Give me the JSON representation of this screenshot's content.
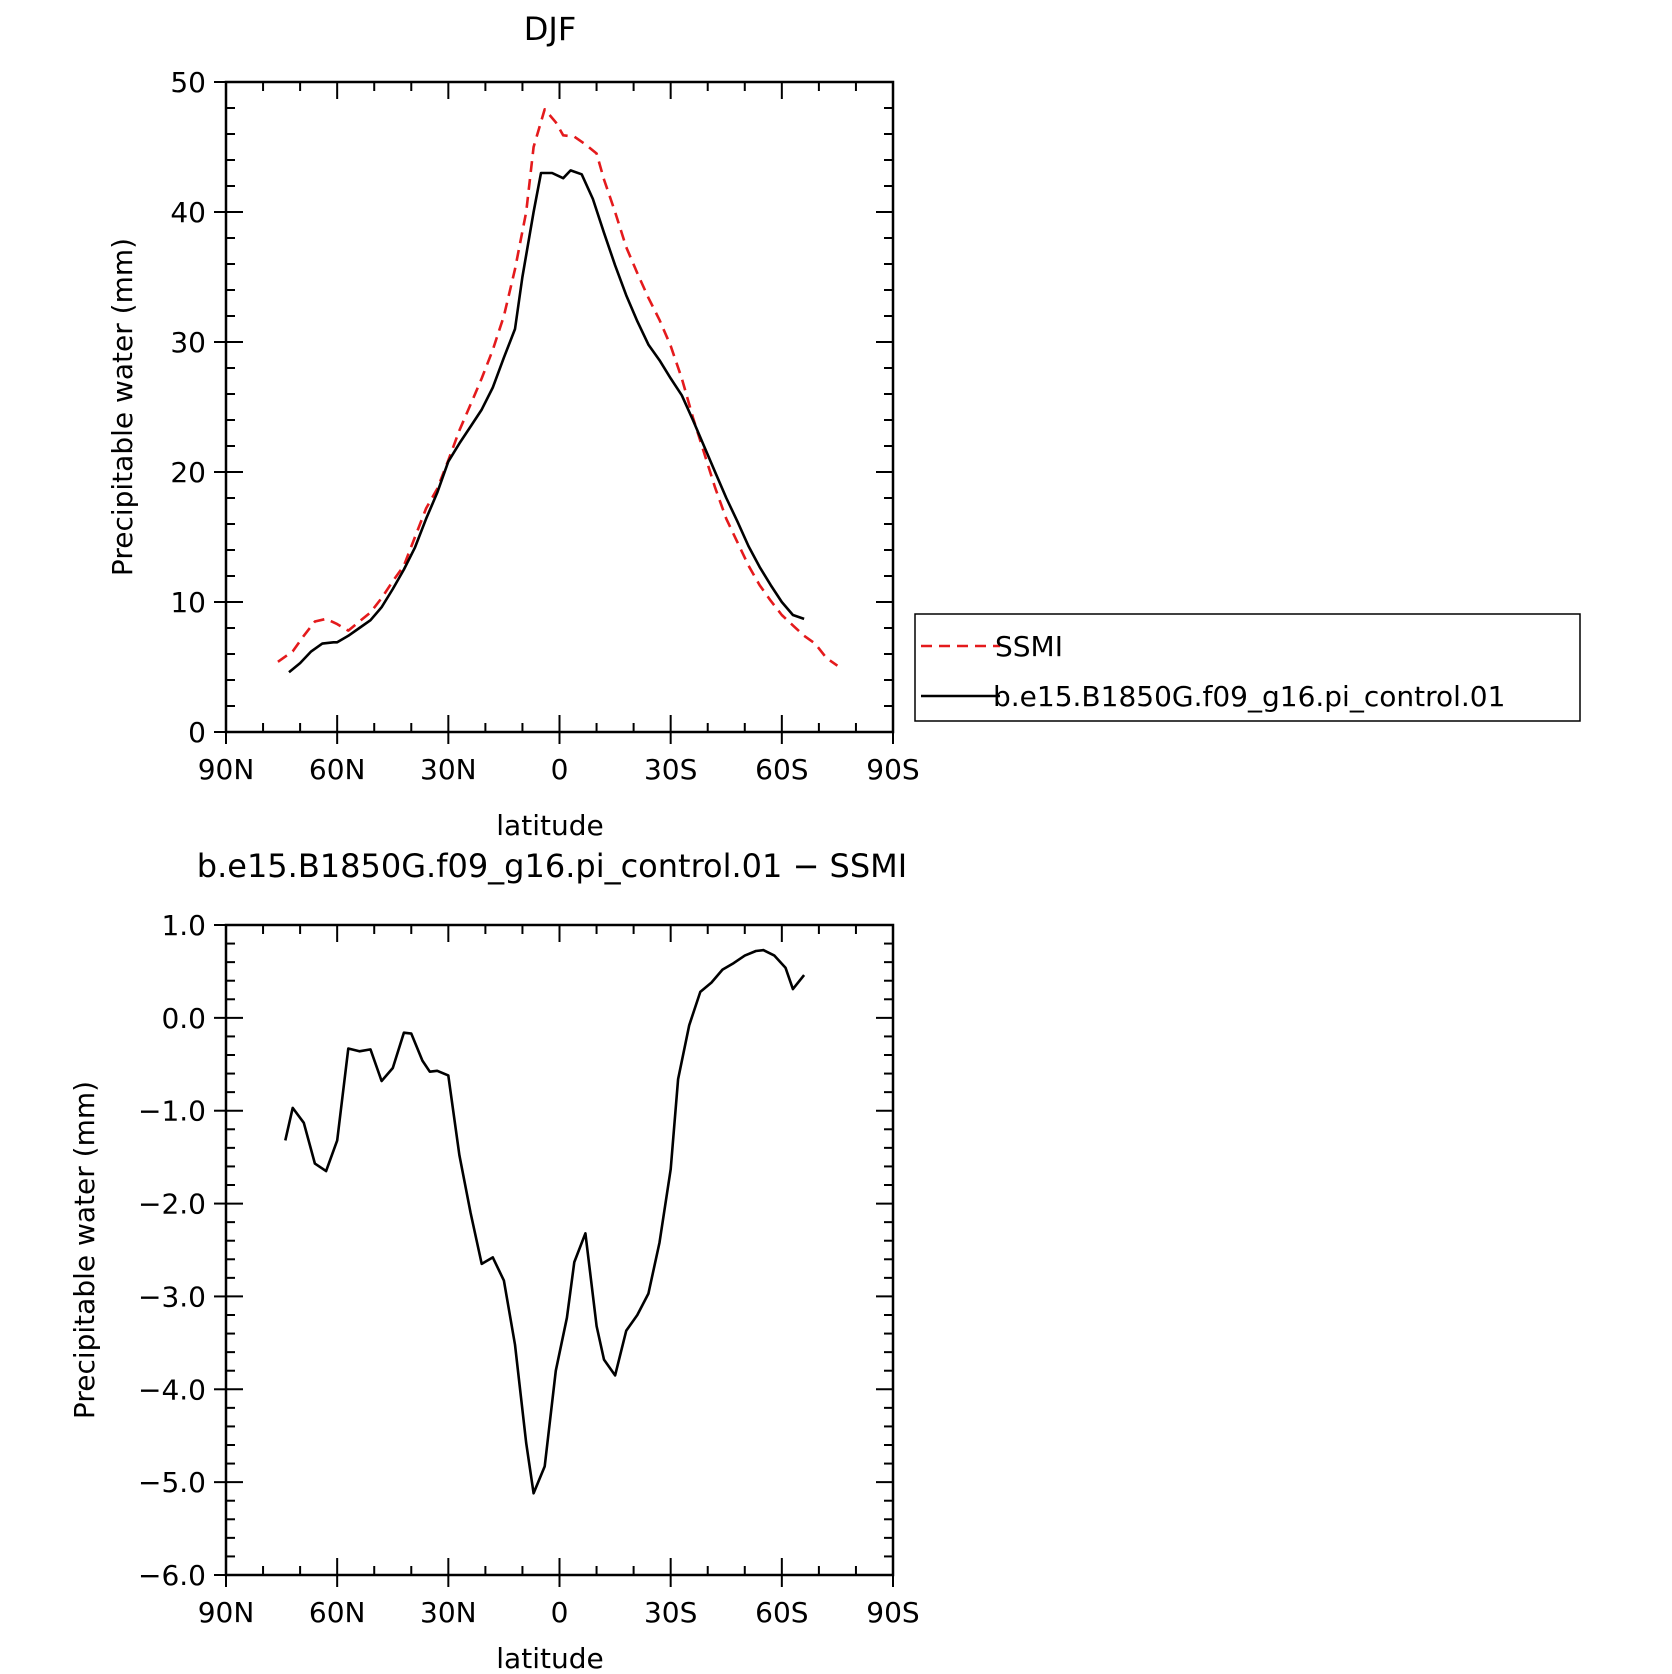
{
  "chart_data": [
    {
      "type": "line",
      "title": "DJF",
      "xlabel": "latitude",
      "ylabel": "Precipitable water (mm)",
      "xlim": [
        90,
        -90
      ],
      "ylim": [
        0,
        50
      ],
      "x_ticks": [
        {
          "value": 90,
          "label": "90N"
        },
        {
          "value": 60,
          "label": "60N"
        },
        {
          "value": 30,
          "label": "30N"
        },
        {
          "value": 0,
          "label": "0"
        },
        {
          "value": -30,
          "label": "30S"
        },
        {
          "value": -60,
          "label": "60S"
        },
        {
          "value": -90,
          "label": "90S"
        }
      ],
      "y_ticks": [
        {
          "value": 0,
          "label": "0"
        },
        {
          "value": 10,
          "label": "10"
        },
        {
          "value": 20,
          "label": "20"
        },
        {
          "value": 30,
          "label": "30"
        },
        {
          "value": 40,
          "label": "40"
        },
        {
          "value": 50,
          "label": "50"
        }
      ],
      "legend_position": "right",
      "series": [
        {
          "name": "SSMI",
          "color": "#e41a1c",
          "dash": "dashed",
          "points": [
            [
              76,
              5.4
            ],
            [
              72,
              6.2
            ],
            [
              69,
              7.4
            ],
            [
              66,
              8.5
            ],
            [
              63,
              8.7
            ],
            [
              60,
              8.3
            ],
            [
              57,
              7.8
            ],
            [
              54,
              8.5
            ],
            [
              51,
              9.2
            ],
            [
              48,
              10.3
            ],
            [
              45,
              11.6
            ],
            [
              42,
              12.8
            ],
            [
              39,
              15.0
            ],
            [
              36,
              17.2
            ],
            [
              33,
              18.7
            ],
            [
              30,
              20.9
            ],
            [
              27,
              23.2
            ],
            [
              24,
              25.2
            ],
            [
              21,
              27.2
            ],
            [
              18,
              29.4
            ],
            [
              15,
              32.0
            ],
            [
              12,
              35.6
            ],
            [
              9,
              40.0
            ],
            [
              7,
              45.0
            ],
            [
              4,
              47.9
            ],
            [
              1,
              46.9
            ],
            [
              -1,
              45.9
            ],
            [
              -4,
              45.8
            ],
            [
              -7,
              45.2
            ],
            [
              -10,
              44.5
            ],
            [
              -12,
              42.5
            ],
            [
              -15,
              40.0
            ],
            [
              -18,
              37.3
            ],
            [
              -21,
              35.3
            ],
            [
              -24,
              33.4
            ],
            [
              -27,
              31.7
            ],
            [
              -30,
              29.7
            ],
            [
              -33,
              27.2
            ],
            [
              -36,
              24.2
            ],
            [
              -39,
              21.5
            ],
            [
              -42,
              18.8
            ],
            [
              -45,
              16.4
            ],
            [
              -48,
              14.6
            ],
            [
              -51,
              12.8
            ],
            [
              -54,
              11.3
            ],
            [
              -57,
              10.1
            ],
            [
              -60,
              9.0
            ],
            [
              -63,
              8.2
            ],
            [
              -66,
              7.4
            ],
            [
              -69,
              6.8
            ],
            [
              -72,
              5.7
            ],
            [
              -75,
              5.1
            ]
          ]
        },
        {
          "name": "b.e15.B1850G.f09_g16.pi_control.01",
          "color": "#000000",
          "dash": "solid",
          "points": [
            [
              73,
              4.6
            ],
            [
              70,
              5.3
            ],
            [
              67,
              6.2
            ],
            [
              64,
              6.8
            ],
            [
              61,
              6.9
            ],
            [
              60,
              6.9
            ],
            [
              57,
              7.4
            ],
            [
              54,
              8.0
            ],
            [
              51,
              8.6
            ],
            [
              48,
              9.6
            ],
            [
              45,
              11.0
            ],
            [
              42,
              12.5
            ],
            [
              39,
              14.2
            ],
            [
              36,
              16.4
            ],
            [
              33,
              18.4
            ],
            [
              30,
              20.8
            ],
            [
              27,
              22.2
            ],
            [
              24,
              23.5
            ],
            [
              21,
              24.8
            ],
            [
              18,
              26.5
            ],
            [
              15,
              28.8
            ],
            [
              12,
              31.0
            ],
            [
              10,
              35.0
            ],
            [
              7,
              40.0
            ],
            [
              5,
              43.0
            ],
            [
              2,
              43.0
            ],
            [
              -1,
              42.6
            ],
            [
              -3,
              43.2
            ],
            [
              -6,
              42.9
            ],
            [
              -9,
              41.0
            ],
            [
              -12,
              38.4
            ],
            [
              -15,
              35.9
            ],
            [
              -18,
              33.6
            ],
            [
              -21,
              31.6
            ],
            [
              -24,
              29.8
            ],
            [
              -27,
              28.6
            ],
            [
              -30,
              27.2
            ],
            [
              -33,
              25.9
            ],
            [
              -36,
              24.0
            ],
            [
              -39,
              22.0
            ],
            [
              -42,
              20.0
            ],
            [
              -45,
              18.0
            ],
            [
              -48,
              16.2
            ],
            [
              -51,
              14.3
            ],
            [
              -54,
              12.7
            ],
            [
              -57,
              11.3
            ],
            [
              -60,
              10.0
            ],
            [
              -63,
              9.0
            ],
            [
              -66,
              8.7
            ]
          ]
        }
      ]
    },
    {
      "type": "line",
      "title": "b.e15.B1850G.f09_g16.pi_control.01 − SSMI",
      "xlabel": "latitude",
      "ylabel": "Precipitable water (mm)",
      "xlim": [
        90,
        -90
      ],
      "ylim": [
        -6,
        1
      ],
      "x_ticks": [
        {
          "value": 90,
          "label": "90N"
        },
        {
          "value": 60,
          "label": "60N"
        },
        {
          "value": 30,
          "label": "30N"
        },
        {
          "value": 0,
          "label": "0"
        },
        {
          "value": -30,
          "label": "30S"
        },
        {
          "value": -60,
          "label": "60S"
        },
        {
          "value": -90,
          "label": "90S"
        }
      ],
      "y_ticks": [
        {
          "value": 1,
          "label": "1.0"
        },
        {
          "value": 0,
          "label": "0.0"
        },
        {
          "value": -1,
          "label": "−1.0"
        },
        {
          "value": -2,
          "label": "−2.0"
        },
        {
          "value": -3,
          "label": "−3.0"
        },
        {
          "value": -4,
          "label": "−4.0"
        },
        {
          "value": -5,
          "label": "−5.0"
        },
        {
          "value": -6,
          "label": "−6.0"
        }
      ],
      "series": [
        {
          "color": "#000000",
          "dash": "solid",
          "points": [
            [
              74,
              -1.32
            ],
            [
              72,
              -0.97
            ],
            [
              69,
              -1.13
            ],
            [
              66,
              -1.57
            ],
            [
              63,
              -1.65
            ],
            [
              60,
              -1.32
            ],
            [
              57,
              -0.33
            ],
            [
              54,
              -0.36
            ],
            [
              51,
              -0.34
            ],
            [
              48,
              -0.68
            ],
            [
              45,
              -0.54
            ],
            [
              42,
              -0.16
            ],
            [
              40,
              -0.17
            ],
            [
              37,
              -0.46
            ],
            [
              35,
              -0.58
            ],
            [
              33,
              -0.57
            ],
            [
              30,
              -0.62
            ],
            [
              27,
              -1.48
            ],
            [
              24,
              -2.1
            ],
            [
              21,
              -2.65
            ],
            [
              18,
              -2.58
            ],
            [
              15,
              -2.83
            ],
            [
              12,
              -3.52
            ],
            [
              9,
              -4.58
            ],
            [
              7,
              -5.12
            ],
            [
              4,
              -4.83
            ],
            [
              1,
              -3.8
            ],
            [
              -2,
              -3.23
            ],
            [
              -4,
              -2.63
            ],
            [
              -7,
              -2.32
            ],
            [
              -10,
              -3.32
            ],
            [
              -12,
              -3.68
            ],
            [
              -15,
              -3.85
            ],
            [
              -18,
              -3.37
            ],
            [
              -21,
              -3.2
            ],
            [
              -24,
              -2.97
            ],
            [
              -27,
              -2.42
            ],
            [
              -30,
              -1.63
            ],
            [
              -32,
              -0.66
            ],
            [
              -35,
              -0.08
            ],
            [
              -38,
              0.28
            ],
            [
              -41,
              0.38
            ],
            [
              -44,
              0.52
            ],
            [
              -47,
              0.59
            ],
            [
              -50,
              0.67
            ],
            [
              -53,
              0.72
            ],
            [
              -55,
              0.73
            ],
            [
              -58,
              0.67
            ],
            [
              -61,
              0.54
            ],
            [
              -63,
              0.31
            ],
            [
              -66,
              0.46
            ]
          ]
        }
      ]
    }
  ]
}
